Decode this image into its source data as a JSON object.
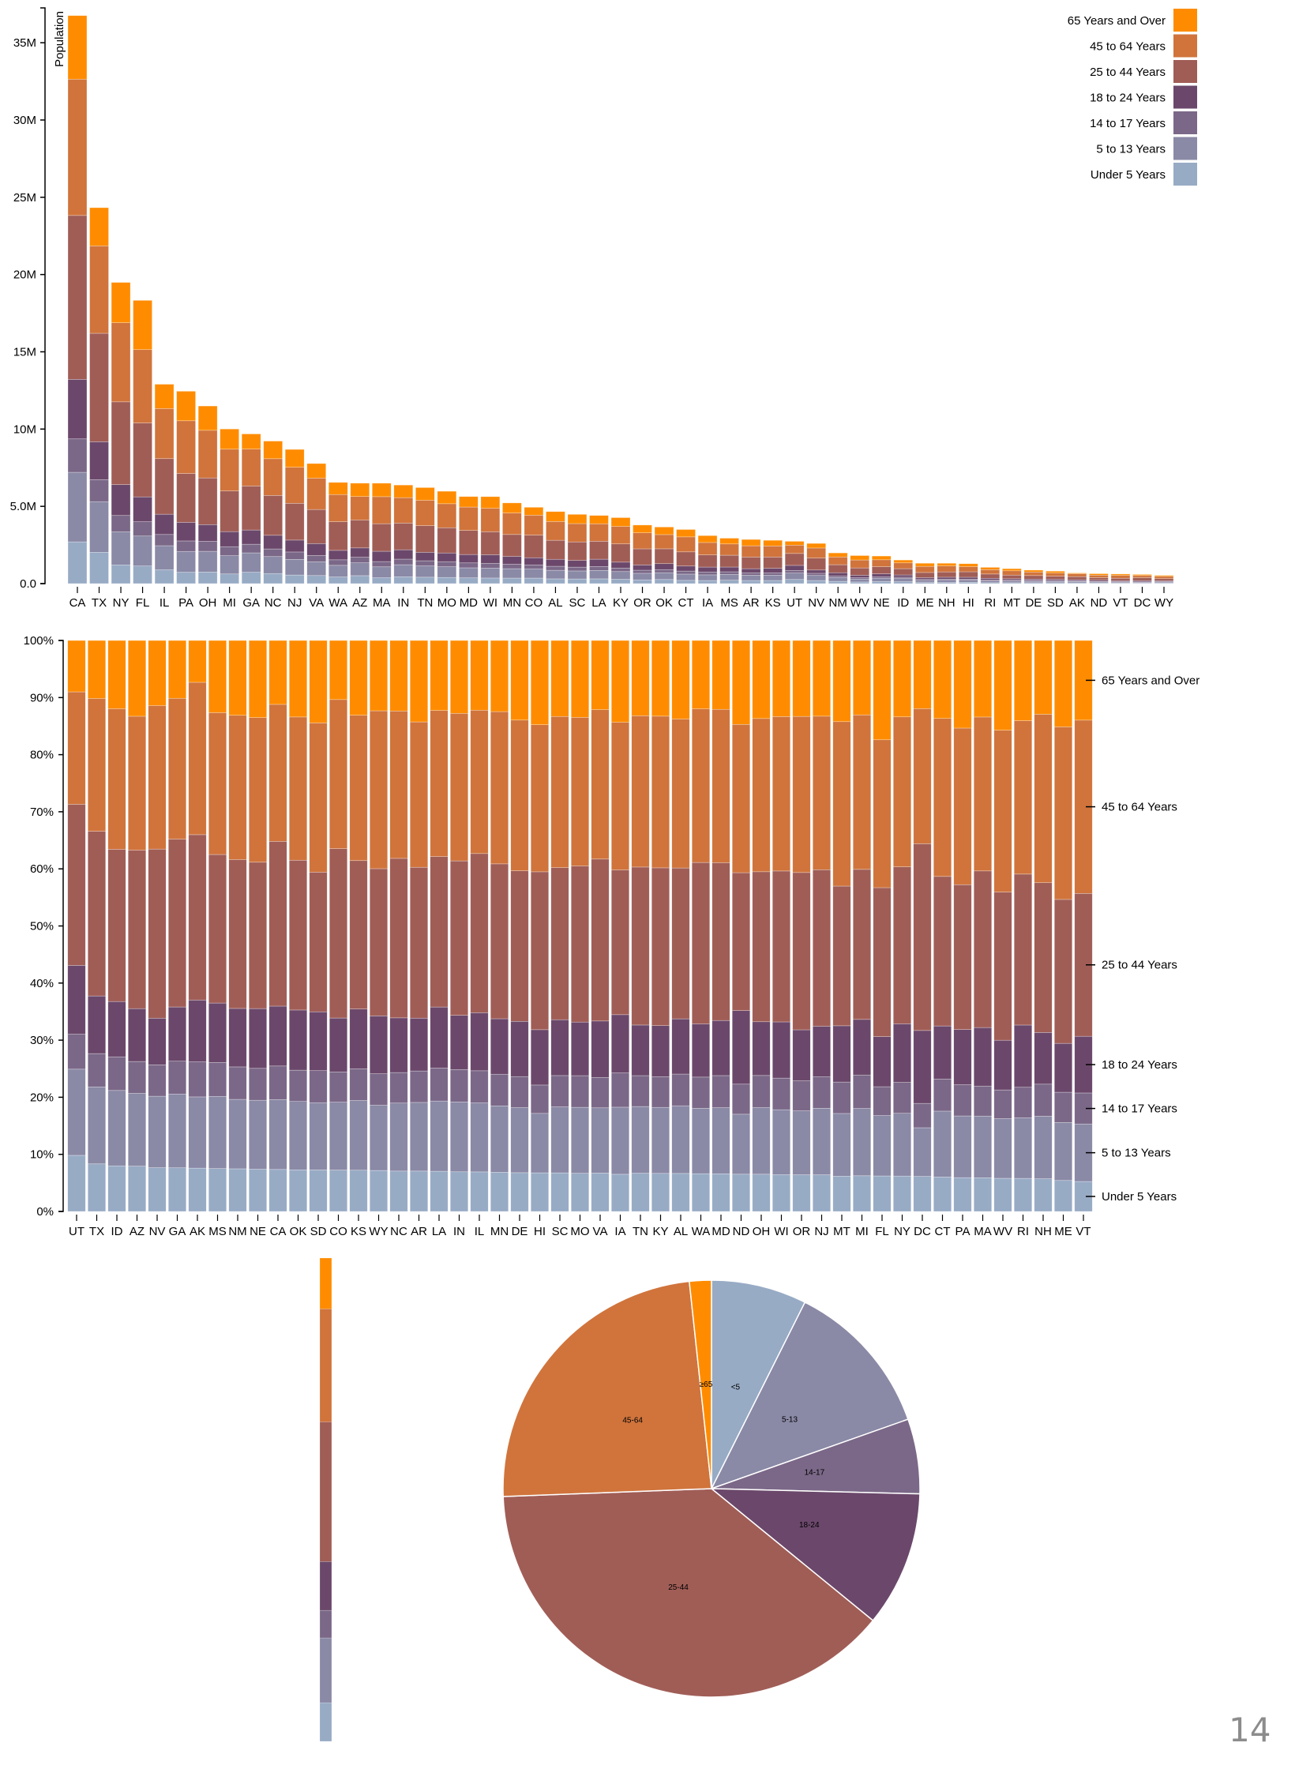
{
  "page": {
    "page_number": "14"
  },
  "age_groups": [
    {
      "key": "Under 5 Years",
      "short": "<5",
      "color": "#98abc5"
    },
    {
      "key": "5 to 13 Years",
      "short": "5-13",
      "color": "#8a89a6"
    },
    {
      "key": "14 to 17 Years",
      "short": "14-17",
      "color": "#7b6888"
    },
    {
      "key": "18 to 24 Years",
      "short": "18-24",
      "color": "#6b486b"
    },
    {
      "key": "25 to 44 Years",
      "short": "25-44",
      "color": "#a05d56"
    },
    {
      "key": "45 to 64 Years",
      "short": "45-64",
      "color": "#d0743c"
    },
    {
      "key": "65 Years and Over",
      "short": "≥65",
      "color": "#ff8c00"
    }
  ],
  "chart_data": [
    {
      "id": "stacked-absolute",
      "type": "bar",
      "stacked": true,
      "title": "",
      "ylabel": "Population",
      "xlabel": "",
      "ylim": [
        0,
        37253956
      ],
      "yticks": [
        "0.0",
        "5.0M",
        "10M",
        "15M",
        "20M",
        "25M",
        "30M",
        "35M"
      ],
      "ytick_values": [
        0,
        5000000,
        10000000,
        15000000,
        20000000,
        25000000,
        30000000,
        35000000
      ],
      "legend": "top-right",
      "sort": "total descending",
      "series_order": [
        "Under 5 Years",
        "5 to 13 Years",
        "14 to 17 Years",
        "18 to 24 Years",
        "25 to 44 Years",
        "45 to 64 Years",
        "65 Years and Over"
      ],
      "states": [
        {
          "state": "CA",
          "values": [
            2704659,
            4499890,
            2159981,
            3853788,
            10604510,
            8819342,
            4114496
          ]
        },
        {
          "state": "TX",
          "values": [
            2027307,
            3277946,
            1420518,
            2454721,
            7017731,
            5656528,
            2472223
          ]
        },
        {
          "state": "NY",
          "values": [
            1208495,
            2141490,
            1058031,
            1999120,
            5355235,
            5120254,
            2607672
          ]
        },
        {
          "state": "FL",
          "values": [
            1140516,
            1938695,
            925060,
            1607297,
            4782119,
            4746856,
            3187797
          ]
        },
        {
          "state": "IL",
          "values": [
            894368,
            1558919,
            725973,
            1311479,
            3596343,
            3239173,
            1575308
          ]
        },
        {
          "state": "PA",
          "values": [
            737462,
            1345341,
            679201,
            1203944,
            3157759,
            3414001,
            1910571
          ]
        },
        {
          "state": "OH",
          "values": [
            750146,
            1340492,
            646135,
            1081734,
            3019147,
            3083815,
            1570837
          ]
        },
        {
          "state": "MI",
          "values": [
            625526,
            1179503,
            585169,
            974480,
            2628322,
            2706100,
            1304322
          ]
        },
        {
          "state": "GA",
          "values": [
            740521,
            1250460,
            557860,
            919876,
            2846985,
            2389018,
            981024
          ]
        },
        {
          "state": "NC",
          "values": [
            652823,
            1097890,
            492964,
            883397,
            2575603,
            2380685,
            1139052
          ]
        },
        {
          "state": "NJ",
          "values": [
            557421,
            1011656,
            478505,
            769321,
            2379649,
            2335168,
            1150941
          ]
        },
        {
          "state": "VA",
          "values": [
            522672,
            887525,
            413004,
            768475,
            2203286,
            2033550,
            940577
          ]
        },
        {
          "state": "WA",
          "values": [
            433119,
            750274,
            357782,
            610378,
            1850983,
            1762811,
            783877
          ]
        },
        {
          "state": "AZ",
          "values": [
            515910,
            828669,
            362642,
            601943,
            1804762,
            1523681,
            862573
          ]
        },
        {
          "state": "MA",
          "values": [
            383568,
            701752,
            341713,
            665879,
            1782449,
            1751508,
            871098
          ]
        },
        {
          "state": "IN",
          "values": [
            443089,
            780199,
            361393,
            605863,
            1724528,
            1647881,
            813839
          ]
        },
        {
          "state": "TN",
          "values": [
            416334,
            725948,
            336312,
            550612,
            1719433,
            1646623,
            819626
          ]
        },
        {
          "state": "MO",
          "values": [
            399450,
            690476,
            331543,
            560463,
            1633560,
            1554812,
            805235
          ]
        },
        {
          "state": "MD",
          "values": [
            371787,
            651923,
            316873,
            543470,
            1556225,
            1513754,
            679565
          ]
        },
        {
          "state": "WI",
          "values": [
            362277,
            640286,
            311849,
            553914,
            1487457,
            1522038,
            750146
          ]
        },
        {
          "state": "MN",
          "values": [
            358471,
            606802,
            289371,
            507289,
            1416063,
            1391878,
            650519
          ]
        },
        {
          "state": "CO",
          "values": [
            358280,
            587154,
            261701,
            466194,
            1464939,
            1290094,
            511094
          ]
        },
        {
          "state": "AL",
          "values": [
            310504,
            552339,
            259034,
            450818,
            1231572,
            1215966,
            641667
          ]
        },
        {
          "state": "SC",
          "values": [
            303024,
            517803,
            245400,
            438147,
            1193112,
            1186019,
            596295
          ]
        },
        {
          "state": "LA",
          "values": [
            310716,
            542341,
            254916,
            471275,
            1162463,
            1128771,
            540314
          ]
        },
        {
          "state": "KY",
          "values": [
            284601,
            493536,
            229927,
            381394,
            1179637,
            1134283,
            565867
          ]
        },
        {
          "state": "OR",
          "values": [
            243483,
            424167,
            199925,
            338162,
            1044056,
            1036269,
            503998
          ]
        },
        {
          "state": "OK",
          "values": [
            266547,
            438926,
            200562,
            385876,
            960573,
            918688,
            490637
          ]
        },
        {
          "state": "CT",
          "values": [
            211637,
            403658,
            196918,
            325110,
            916955,
            968967,
            478007
          ]
        },
        {
          "state": "IA",
          "values": [
            202329,
            364803,
            186009,
            316854,
            787107,
            803148,
            444554
          ]
        },
        {
          "state": "MS",
          "values": [
            220813,
            371502,
            174405,
            305964,
            764203,
            730133,
            371598
          ]
        },
        {
          "state": "AR",
          "values": [
            202070,
            343207,
            157204,
            264160,
            754420,
            727124,
            407205
          ]
        },
        {
          "state": "KS",
          "values": [
            202529,
            342134,
            155822,
            293114,
            728166,
            713663,
            366706
          ]
        },
        {
          "state": "UT",
          "values": [
            268916,
            413034,
            167685,
            329585,
            772024,
            538978,
            246202
          ]
        },
        {
          "state": "NV",
          "values": [
            199175,
            325650,
            142976,
            212379,
            769913,
            653357,
            296717
          ]
        },
        {
          "state": "NM",
          "values": [
            148323,
            241326,
            112801,
            203097,
            517154,
            501604,
            260051
          ]
        },
        {
          "state": "WV",
          "values": [
            105435,
            189649,
            91074,
            157989,
            470749,
            514505,
            285067
          ]
        },
        {
          "state": "NE",
          "values": [
            132092,
            215265,
            99638,
            186657,
            457177,
            451756,
            240847
          ]
        },
        {
          "state": "ID",
          "values": [
            121746,
            201192,
            89702,
            147606,
            406247,
            375173,
            182150
          ]
        },
        {
          "state": "ME",
          "values": [
            71459,
            133656,
            69752,
            112682,
            331809,
            397911,
            199187
          ]
        },
        {
          "state": "NH",
          "values": [
            75297,
            144235,
            73826,
            119114,
            345109,
            388250,
            169978
          ]
        },
        {
          "state": "HI",
          "values": [
            87207,
            134025,
            64011,
            124834,
            356237,
            331817,
            190067
          ]
        },
        {
          "state": "RI",
          "values": [
            60934,
            111408,
            56198,
            114502,
            277779,
            282321,
            147646
          ]
        },
        {
          "state": "MT",
          "values": [
            59736,
            106027,
            53156,
            95232,
            236297,
            278241,
            137312
          ]
        },
        {
          "state": "DE",
          "values": [
            59319,
            99496,
            47414,
            84464,
            230183,
            230528,
            121688
          ]
        },
        {
          "state": "SD",
          "values": [
            58566,
            94438,
            45305,
            82869,
            196738,
            210178,
            116100
          ]
        },
        {
          "state": "AK",
          "values": [
            52083,
            85640,
            42153,
            74257,
            198724,
            183159,
            50277
          ]
        },
        {
          "state": "ND",
          "values": [
            41896,
            67358,
            33794,
            82629,
            154913,
            166615,
            94276
          ]
        },
        {
          "state": "VT",
          "values": [
            32635,
            62538,
            33757,
            61679,
            155419,
            188593,
            86649
          ]
        },
        {
          "state": "DC",
          "values": [
            36352,
            50439,
            25225,
            75569,
            193557,
            140043,
            70648
          ]
        },
        {
          "state": "WY",
          "values": [
            38253,
            60890,
            29314,
            53980,
            137338,
            147279,
            65614
          ]
        }
      ]
    },
    {
      "id": "stacked-normalized",
      "type": "bar",
      "stacked": true,
      "normalized": true,
      "title": "",
      "xlabel": "",
      "ylabel": "",
      "ylim": [
        0,
        100
      ],
      "yticks": [
        "0%",
        "10%",
        "20%",
        "30%",
        "40%",
        "50%",
        "60%",
        "70%",
        "80%",
        "90%",
        "100%"
      ],
      "sort": "Under 5 Years share descending",
      "state_order": [
        "UT",
        "TX",
        "ID",
        "AZ",
        "NV",
        "GA",
        "AK",
        "MS",
        "NM",
        "NE",
        "CA",
        "OK",
        "SD",
        "CO",
        "KS",
        "WY",
        "NC",
        "AR",
        "LA",
        "IN",
        "IL",
        "MN",
        "DE",
        "HI",
        "SC",
        "MO",
        "VA",
        "IA",
        "TN",
        "KY",
        "AL",
        "WA",
        "MD",
        "ND",
        "OH",
        "WI",
        "OR",
        "NJ",
        "MT",
        "MI",
        "FL",
        "NY",
        "DC",
        "CT",
        "PA",
        "MA",
        "WV",
        "RI",
        "NH",
        "ME",
        "VT"
      ],
      "series_labels": [
        "65 Years and Over",
        "45 to 64 Years",
        "25 to 44 Years",
        "18 to 24 Years",
        "14 to 17 Years",
        "5 to 13 Years",
        "Under 5 Years"
      ],
      "series_labels_placement": "right"
    },
    {
      "id": "single-stacked-bar",
      "type": "bar",
      "stacked": true,
      "normalized": true,
      "title": "",
      "note": "single stacked column with no axes, segment shares in percent",
      "values": [
        {
          "label": "Under 5 Years",
          "value": 8.0
        },
        {
          "label": "5 to 13 Years",
          "value": 13.4
        },
        {
          "label": "14 to 17 Years",
          "value": 5.7
        },
        {
          "label": "18 to 24 Years",
          "value": 10.1
        },
        {
          "label": "25 to 44 Years",
          "value": 28.9
        },
        {
          "label": "45 to 64 Years",
          "value": 23.4
        },
        {
          "label": "65 Years and Over",
          "value": 10.5
        }
      ]
    },
    {
      "id": "pie",
      "type": "pie",
      "title": "",
      "start": "top, clockwise",
      "slices": [
        {
          "label": "<5",
          "value": 7.4
        },
        {
          "label": "5-13",
          "value": 12.2
        },
        {
          "label": "14-17",
          "value": 5.8
        },
        {
          "label": "18-24",
          "value": 10.5
        },
        {
          "label": "25-44",
          "value": 38.5
        },
        {
          "label": "45-64",
          "value": 23.9
        },
        {
          "label": "≥65",
          "value": 1.7
        }
      ]
    }
  ]
}
